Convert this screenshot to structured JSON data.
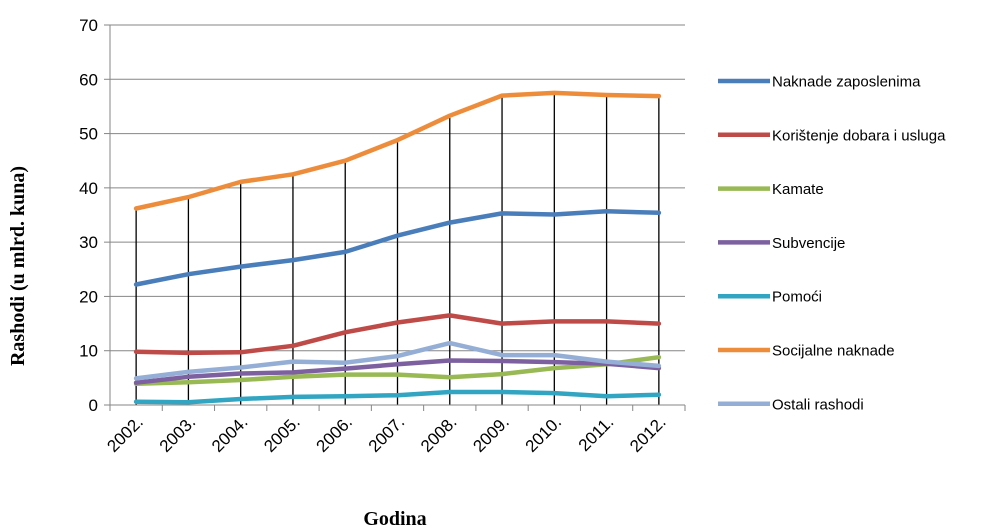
{
  "chart_data": {
    "type": "line",
    "title": "",
    "xlabel": "Godina",
    "ylabel": "Rashodi (u mlrd. kuna)",
    "ylim": [
      0,
      70
    ],
    "yticks": [
      0,
      10,
      20,
      30,
      40,
      50,
      60,
      70
    ],
    "grid": "horizontal",
    "legend_position": "right",
    "drop_lines": true,
    "categories": [
      "2002.",
      "2003.",
      "2004.",
      "2005.",
      "2006.",
      "2007.",
      "2008.",
      "2009.",
      "2010.",
      "2011.",
      "2012."
    ],
    "series": [
      {
        "name": "Naknade zaposlenima",
        "color": "#4a7ebb",
        "values": [
          22.2,
          24.1,
          25.5,
          26.7,
          28.2,
          31.2,
          33.6,
          35.3,
          35.1,
          35.7,
          35.4
        ]
      },
      {
        "name": "Korištenje dobara i usluga",
        "color": "#be4b48",
        "values": [
          9.8,
          9.6,
          9.7,
          10.9,
          13.4,
          15.2,
          16.5,
          15.0,
          15.4,
          15.4,
          15.0
        ]
      },
      {
        "name": "Kamate",
        "color": "#98b954",
        "values": [
          3.9,
          4.2,
          4.6,
          5.2,
          5.6,
          5.6,
          5.1,
          5.7,
          6.8,
          7.5,
          8.8
        ]
      },
      {
        "name": "Subvencije",
        "color": "#7d60a0",
        "values": [
          4.1,
          5.2,
          5.8,
          6.0,
          6.7,
          7.5,
          8.2,
          8.1,
          7.9,
          7.6,
          6.8
        ]
      },
      {
        "name": "Pomoći",
        "color": "#31a5c1",
        "values": [
          0.6,
          0.5,
          1.1,
          1.5,
          1.6,
          1.8,
          2.4,
          2.4,
          2.2,
          1.6,
          1.9
        ]
      },
      {
        "name": "Socijalne naknade",
        "color": "#ed8d3b",
        "values": [
          36.2,
          38.3,
          41.1,
          42.5,
          45.0,
          48.8,
          53.3,
          57.0,
          57.5,
          57.1,
          56.9
        ]
      },
      {
        "name": "Ostali rashodi",
        "color": "#95aed5",
        "values": [
          4.9,
          6.1,
          6.9,
          8.0,
          7.8,
          9.0,
          11.4,
          9.2,
          9.2,
          8.0,
          7.2
        ]
      }
    ]
  }
}
